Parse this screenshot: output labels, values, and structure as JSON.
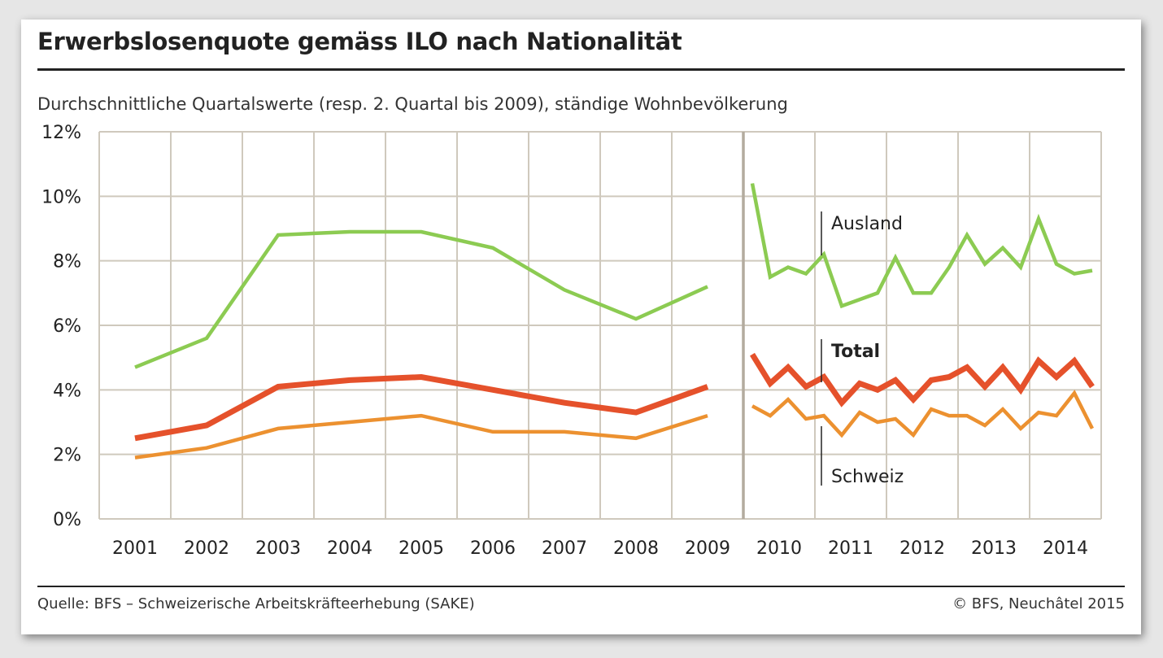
{
  "title": "Erwerbslosenquote gemäss ILO nach Nationalität",
  "subtitle": "Durchschnittliche Quartalswerte (resp. 2. Quartal bis 2009), ständige Wohnbevölkerung",
  "source": "Quelle: BFS – Schweizerische Arbeitskräfteerhebung (SAKE)",
  "copyright": "© BFS, Neuchâtel 2015",
  "chart_data": {
    "type": "line",
    "ylim": [
      0,
      12
    ],
    "yticks": [
      0,
      2,
      4,
      6,
      8,
      10,
      12
    ],
    "ytick_labels": [
      "0%",
      "2%",
      "4%",
      "6%",
      "8%",
      "10%",
      "12%"
    ],
    "xtick_labels": [
      "2001",
      "2002",
      "2003",
      "2004",
      "2005",
      "2006",
      "2007",
      "2008",
      "2009",
      "2010",
      "2011",
      "2012",
      "2013",
      "2014"
    ],
    "grid": true,
    "colors": {
      "Ausland": "#8ccb52",
      "Total": "#e5512b",
      "Schweiz": "#ec9130",
      "grid": "#cfc9bd"
    },
    "annual": {
      "x": [
        "2001",
        "2002",
        "2003",
        "2004",
        "2005",
        "2006",
        "2007",
        "2008",
        "2009"
      ],
      "series": [
        {
          "name": "Ausland",
          "values": [
            4.7,
            5.6,
            8.8,
            8.9,
            8.9,
            8.4,
            7.1,
            6.2,
            7.2
          ]
        },
        {
          "name": "Total",
          "values": [
            2.5,
            2.9,
            4.1,
            4.3,
            4.4,
            4.0,
            3.6,
            3.3,
            4.1
          ]
        },
        {
          "name": "Schweiz",
          "values": [
            1.9,
            2.2,
            2.8,
            3.0,
            3.2,
            2.7,
            2.7,
            2.5,
            3.2
          ]
        }
      ]
    },
    "quarterly": {
      "x": [
        "2010 Q1",
        "2010 Q2",
        "2010 Q3",
        "2010 Q4",
        "2011 Q1",
        "2011 Q2",
        "2011 Q3",
        "2011 Q4",
        "2012 Q1",
        "2012 Q2",
        "2012 Q3",
        "2012 Q4",
        "2013 Q1",
        "2013 Q2",
        "2013 Q3",
        "2013 Q4",
        "2014 Q1",
        "2014 Q2",
        "2014 Q3",
        "2014 Q4"
      ],
      "series": [
        {
          "name": "Ausland",
          "values": [
            10.4,
            7.5,
            7.8,
            7.6,
            8.2,
            6.6,
            6.8,
            7.0,
            8.1,
            7.0,
            7.0,
            7.8,
            8.8,
            7.9,
            8.4,
            7.8,
            9.3,
            7.9,
            7.6,
            7.7
          ]
        },
        {
          "name": "Total",
          "values": [
            5.1,
            4.2,
            4.7,
            4.1,
            4.4,
            3.6,
            4.2,
            4.0,
            4.3,
            3.7,
            4.3,
            4.4,
            4.7,
            4.1,
            4.7,
            4.0,
            4.9,
            4.4,
            4.9,
            4.1
          ]
        },
        {
          "name": "Schweiz",
          "values": [
            3.5,
            3.2,
            3.7,
            3.1,
            3.2,
            2.6,
            3.3,
            3.0,
            3.1,
            2.6,
            3.4,
            3.2,
            3.2,
            2.9,
            3.4,
            2.8,
            3.3,
            3.2,
            3.9,
            2.8
          ]
        }
      ]
    }
  }
}
